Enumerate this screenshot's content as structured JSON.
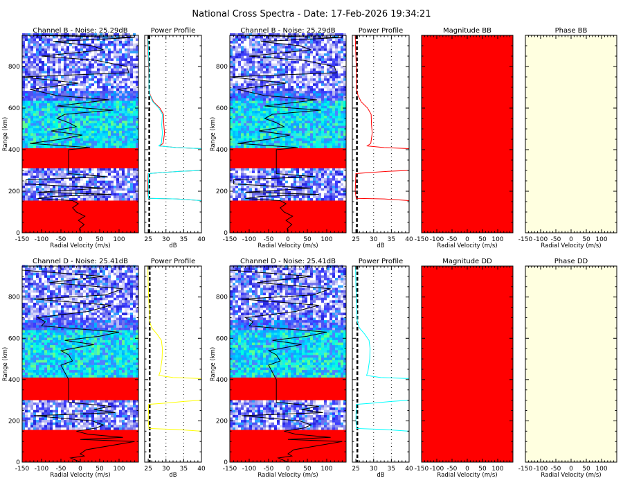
{
  "title": "National Cross Spectra - Date: 17-Feb-2026 19:34:21",
  "colors": {
    "mag_fill": "#ff0000",
    "phase_fill": "#ffffe0",
    "saturated": "#ff0000",
    "profile_B_1": "#ff0000",
    "profile_B_2": "#00ffff",
    "profile_D": "#ffff00",
    "profile_D_alt": "#00ffff",
    "mean_velocity": "#000000"
  },
  "chart_data": [
    {
      "type": "heatmap",
      "title": "Channel B - Noise: 25.29dB",
      "xlabel": "Radial Velocity (m/s)",
      "ylabel": "Range (km)",
      "xlim": [
        -150,
        150
      ],
      "ylim": [
        0,
        950
      ],
      "xticks": [
        "-150",
        "-100",
        "-50",
        "0",
        "50",
        "100"
      ],
      "yticks": [
        "0",
        "200",
        "400",
        "600",
        "800"
      ],
      "saturated_bands_km": [
        [
          0,
          155
        ],
        [
          305,
          400
        ]
      ],
      "mean_velocity": [
        [
          0,
          0
        ],
        [
          20,
          -2
        ],
        [
          40,
          10
        ],
        [
          60,
          -5
        ],
        [
          80,
          12
        ],
        [
          100,
          -10
        ],
        [
          120,
          -20
        ],
        [
          140,
          -5
        ],
        [
          155,
          -20
        ],
        [
          165,
          -110
        ],
        [
          175,
          -70
        ],
        [
          185,
          80
        ],
        [
          195,
          -110
        ],
        [
          215,
          60
        ],
        [
          235,
          -140
        ],
        [
          255,
          -140
        ],
        [
          270,
          70
        ],
        [
          285,
          -30
        ],
        [
          300,
          -30
        ],
        [
          350,
          -30
        ],
        [
          400,
          -30
        ],
        [
          410,
          25
        ],
        [
          430,
          -130
        ],
        [
          450,
          -50
        ],
        [
          470,
          5
        ],
        [
          490,
          -75
        ],
        [
          510,
          -10
        ],
        [
          530,
          -30
        ],
        [
          550,
          -60
        ],
        [
          570,
          -40
        ],
        [
          590,
          85
        ],
        [
          610,
          -60
        ],
        [
          640,
          75
        ],
        [
          660,
          -60
        ],
        [
          690,
          -130
        ],
        [
          720,
          -5
        ],
        [
          750,
          -150
        ],
        [
          770,
          125
        ],
        [
          800,
          120
        ],
        [
          830,
          40
        ],
        [
          850,
          -100
        ],
        [
          880,
          60
        ],
        [
          900,
          30
        ],
        [
          920,
          -70
        ],
        [
          940,
          140
        ],
        [
          950,
          -130
        ]
      ]
    },
    {
      "type": "line",
      "title": "Power Profile",
      "xlabel": "dB",
      "xlim": [
        24,
        40
      ],
      "ylim": [
        0,
        950
      ],
      "xticks": [
        "25",
        "30",
        "35",
        "40"
      ],
      "noise_db": 25.29,
      "grid": "dotted at 30, 35",
      "series": [
        {
          "values": [
            [
              155,
              40
            ],
            [
              163,
              33
            ],
            [
              166,
              25.1
            ],
            [
              200,
              24.8
            ],
            [
              285,
              25.0
            ],
            [
              290,
              29
            ],
            [
              296,
              34
            ],
            [
              300,
              40
            ],
            [
              405,
              40
            ],
            [
              410,
              33
            ],
            [
              418,
              28.2
            ],
            [
              430,
              29.2
            ],
            [
              480,
              29.6
            ],
            [
              520,
              29.4
            ],
            [
              570,
              29.3
            ],
            [
              600,
              28.3
            ],
            [
              630,
              26.5
            ],
            [
              660,
              25.6
            ],
            [
              690,
              25.2
            ],
            [
              800,
              25.1
            ],
            [
              900,
              24.9
            ],
            [
              950,
              24.8
            ]
          ]
        },
        {
          "values": [
            [
              155,
              40
            ],
            [
              163,
              33
            ],
            [
              166,
              25.1
            ],
            [
              200,
              25.0
            ],
            [
              285,
              25.1
            ],
            [
              290,
              29
            ],
            [
              296,
              34
            ],
            [
              300,
              40
            ],
            [
              405,
              40
            ],
            [
              410,
              33
            ],
            [
              418,
              28.0
            ],
            [
              430,
              28.7
            ],
            [
              480,
              29.0
            ],
            [
              520,
              28.8
            ],
            [
              570,
              29.0
            ],
            [
              600,
              28.0
            ],
            [
              630,
              26.3
            ],
            [
              660,
              25.5
            ],
            [
              690,
              25.2
            ],
            [
              800,
              25.2
            ],
            [
              900,
              25.0
            ],
            [
              950,
              24.9
            ]
          ]
        }
      ]
    },
    {
      "type": "heatmap",
      "title": "Channel B - Noise: 25.29dB",
      "xlabel": "Radial Velocity (m/s)",
      "ylabel": "Range (km)",
      "xlim": [
        -150,
        150
      ],
      "ylim": [
        0,
        950
      ],
      "same_as": 0
    },
    {
      "type": "line",
      "title": "Power Profile",
      "xlabel": "dB",
      "xlim": [
        24,
        40
      ],
      "ylim": [
        0,
        950
      ],
      "noise_db": 25.29,
      "series_from": 1,
      "series_index": 0
    },
    {
      "type": "heatmap",
      "title": "Magnitude BB",
      "xlabel": "Radial Velocity (m/s)",
      "xlim": [
        -150,
        150
      ],
      "ylim": [
        0,
        950
      ],
      "fill": "uniform red"
    },
    {
      "type": "heatmap",
      "title": "Phase BB",
      "xlabel": "Radial Velocity (m/s)",
      "xlim": [
        -150,
        150
      ],
      "ylim": [
        0,
        950
      ],
      "fill": "uniform light yellow"
    },
    {
      "type": "heatmap",
      "title": "Channel D - Noise: 25.41dB",
      "xlabel": "Radial Velocity (m/s)",
      "ylabel": "Range (km)",
      "xlim": [
        -150,
        150
      ],
      "ylim": [
        0,
        950
      ],
      "saturated_bands_km": [
        [
          0,
          155
        ],
        [
          300,
          400
        ]
      ],
      "mean_velocity": [
        [
          0,
          0
        ],
        [
          20,
          -25
        ],
        [
          30,
          10
        ],
        [
          40,
          0
        ],
        [
          60,
          15
        ],
        [
          100,
          140
        ],
        [
          110,
          0
        ],
        [
          120,
          110
        ],
        [
          135,
          20
        ],
        [
          150,
          -10
        ],
        [
          165,
          40
        ],
        [
          180,
          60
        ],
        [
          200,
          30
        ],
        [
          225,
          -120
        ],
        [
          240,
          90
        ],
        [
          255,
          35
        ],
        [
          270,
          80
        ],
        [
          290,
          -30
        ],
        [
          300,
          -30
        ],
        [
          400,
          -30
        ],
        [
          470,
          -50
        ],
        [
          490,
          -20
        ],
        [
          520,
          -30
        ],
        [
          540,
          -50
        ],
        [
          570,
          35
        ],
        [
          590,
          -40
        ],
        [
          610,
          50
        ],
        [
          630,
          100
        ],
        [
          660,
          -100
        ],
        [
          680,
          -90
        ],
        [
          700,
          -110
        ],
        [
          730,
          20
        ],
        [
          760,
          80
        ],
        [
          790,
          -120
        ],
        [
          810,
          65
        ],
        [
          840,
          110
        ],
        [
          870,
          -80
        ],
        [
          900,
          60
        ],
        [
          930,
          -150
        ],
        [
          950,
          -150
        ]
      ]
    },
    {
      "type": "line",
      "title": "Power Profile",
      "xlabel": "dB",
      "xlim": [
        24,
        40
      ],
      "ylim": [
        0,
        950
      ],
      "noise_db": 25.41,
      "series": [
        {
          "values": [
            [
              150,
              40
            ],
            [
              158,
              33
            ],
            [
              163,
              25.2
            ],
            [
              200,
              25.0
            ],
            [
              280,
              25.1
            ],
            [
              286,
              30
            ],
            [
              294,
              35
            ],
            [
              300,
              40
            ],
            [
              405,
              40
            ],
            [
              410,
              32
            ],
            [
              420,
              28.0
            ],
            [
              440,
              28.4
            ],
            [
              500,
              28.9
            ],
            [
              550,
              29.0
            ],
            [
              590,
              28.7
            ],
            [
              620,
              27.5
            ],
            [
              650,
              26.0
            ],
            [
              680,
              25.4
            ],
            [
              720,
              25.3
            ],
            [
              850,
              25.0
            ],
            [
              950,
              24.9
            ]
          ]
        }
      ]
    },
    {
      "type": "heatmap",
      "title": "Channel D - Noise: 25.41dB",
      "xlabel": "Radial Velocity (m/s)",
      "ylabel": "Range (km)",
      "xlim": [
        -150,
        150
      ],
      "ylim": [
        0,
        950
      ],
      "same_as": 6
    },
    {
      "type": "line",
      "title": "Power Profile",
      "xlabel": "dB",
      "xlim": [
        24,
        40
      ],
      "ylim": [
        0,
        950
      ],
      "noise_db": 25.41,
      "series_from": 7,
      "series_index": 0
    },
    {
      "type": "heatmap",
      "title": "Magnitude DD",
      "xlabel": "Radial Velocity (m/s)",
      "xlim": [
        -150,
        150
      ],
      "ylim": [
        0,
        950
      ],
      "fill": "uniform red"
    },
    {
      "type": "heatmap",
      "title": "Phase DD",
      "xlabel": "Radial Velocity (m/s)",
      "xlim": [
        -150,
        150
      ],
      "ylim": [
        0,
        950
      ],
      "fill": "uniform light yellow"
    }
  ]
}
